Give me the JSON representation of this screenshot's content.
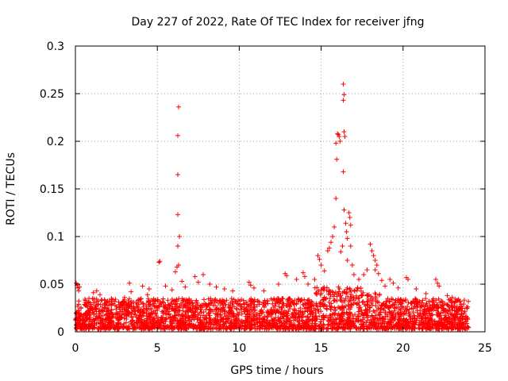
{
  "chart_data": {
    "type": "scatter",
    "title": "Day 227 of 2022, Rate Of TEC Index for receiver jfng",
    "xlabel": "GPS time / hours",
    "ylabel": "ROTI / TECUs",
    "xlim": [
      0,
      25
    ],
    "ylim": [
      0,
      0.3
    ],
    "grid": true,
    "marker": "+",
    "marker_color": "#ff0000",
    "x_ticks": [
      0,
      5,
      10,
      15,
      20,
      25
    ],
    "x_tick_labels": [
      "0",
      "5",
      "10",
      "15",
      "20",
      "25"
    ],
    "y_ticks": [
      0,
      0.05,
      0.1,
      0.15,
      0.2,
      0.25,
      0.3
    ],
    "y_tick_labels": [
      "0",
      "0.05",
      "0.1",
      "0.15",
      "0.2",
      "0.25",
      "0.3"
    ],
    "series": [
      {
        "name": "ROTI",
        "baseline_band": {
          "x_start": 0,
          "x_end": 24,
          "y_low": 0.003,
          "y_high": 0.035,
          "samples": 3000
        },
        "points": [
          [
            0.05,
            0.051
          ],
          [
            0.1,
            0.049
          ],
          [
            0.15,
            0.046
          ],
          [
            0.2,
            0.043
          ],
          [
            0.25,
            0.047
          ],
          [
            1.1,
            0.041
          ],
          [
            1.3,
            0.043
          ],
          [
            1.5,
            0.039
          ],
          [
            2.2,
            0.035
          ],
          [
            3.0,
            0.036
          ],
          [
            3.4,
            0.042
          ],
          [
            3.3,
            0.051
          ],
          [
            4.1,
            0.048
          ],
          [
            4.4,
            0.039
          ],
          [
            4.5,
            0.045
          ],
          [
            5.1,
            0.073
          ],
          [
            5.15,
            0.074
          ],
          [
            5.5,
            0.048
          ],
          [
            5.9,
            0.044
          ],
          [
            6.1,
            0.063
          ],
          [
            6.2,
            0.068
          ],
          [
            6.25,
            0.09
          ],
          [
            6.3,
            0.07
          ],
          [
            6.35,
            0.1
          ],
          [
            6.25,
            0.123
          ],
          [
            6.25,
            0.165
          ],
          [
            6.25,
            0.206
          ],
          [
            6.3,
            0.236
          ],
          [
            6.5,
            0.053
          ],
          [
            6.7,
            0.047
          ],
          [
            7.3,
            0.058
          ],
          [
            7.5,
            0.052
          ],
          [
            7.8,
            0.06
          ],
          [
            8.2,
            0.05
          ],
          [
            8.6,
            0.047
          ],
          [
            9.1,
            0.045
          ],
          [
            9.6,
            0.043
          ],
          [
            10.6,
            0.052
          ],
          [
            10.7,
            0.049
          ],
          [
            10.9,
            0.046
          ],
          [
            11.5,
            0.043
          ],
          [
            12.4,
            0.05
          ],
          [
            12.8,
            0.061
          ],
          [
            12.9,
            0.059
          ],
          [
            13.5,
            0.055
          ],
          [
            13.9,
            0.062
          ],
          [
            14.0,
            0.058
          ],
          [
            14.2,
            0.05
          ],
          [
            14.6,
            0.055
          ],
          [
            14.8,
            0.08
          ],
          [
            14.9,
            0.076
          ],
          [
            15.0,
            0.07
          ],
          [
            15.2,
            0.064
          ],
          [
            15.4,
            0.085
          ],
          [
            15.5,
            0.088
          ],
          [
            15.6,
            0.094
          ],
          [
            15.7,
            0.1
          ],
          [
            15.8,
            0.11
          ],
          [
            15.9,
            0.14
          ],
          [
            15.95,
            0.181
          ],
          [
            15.9,
            0.198
          ],
          [
            16.0,
            0.208
          ],
          [
            16.05,
            0.207
          ],
          [
            16.1,
            0.205
          ],
          [
            16.15,
            0.2
          ],
          [
            16.2,
            0.084
          ],
          [
            16.3,
            0.09
          ],
          [
            16.35,
            0.26
          ],
          [
            16.4,
            0.249
          ],
          [
            16.35,
            0.243
          ],
          [
            16.4,
            0.21
          ],
          [
            16.45,
            0.205
          ],
          [
            16.35,
            0.168
          ],
          [
            16.4,
            0.128
          ],
          [
            16.5,
            0.114
          ],
          [
            16.55,
            0.105
          ],
          [
            16.6,
            0.098
          ],
          [
            16.6,
            0.075
          ],
          [
            16.7,
            0.125
          ],
          [
            16.75,
            0.12
          ],
          [
            16.8,
            0.112
          ],
          [
            16.8,
            0.09
          ],
          [
            16.9,
            0.07
          ],
          [
            17.0,
            0.06
          ],
          [
            17.3,
            0.055
          ],
          [
            17.6,
            0.06
          ],
          [
            17.8,
            0.065
          ],
          [
            18.0,
            0.092
          ],
          [
            18.1,
            0.085
          ],
          [
            18.2,
            0.08
          ],
          [
            18.3,
            0.075
          ],
          [
            18.4,
            0.07
          ],
          [
            18.3,
            0.065
          ],
          [
            18.5,
            0.061
          ],
          [
            18.7,
            0.054
          ],
          [
            18.9,
            0.048
          ],
          [
            19.2,
            0.055
          ],
          [
            19.4,
            0.051
          ],
          [
            19.7,
            0.046
          ],
          [
            20.2,
            0.057
          ],
          [
            20.3,
            0.055
          ],
          [
            20.8,
            0.045
          ],
          [
            21.4,
            0.04
          ],
          [
            22.0,
            0.055
          ],
          [
            22.1,
            0.051
          ],
          [
            22.2,
            0.048
          ],
          [
            22.7,
            0.038
          ],
          [
            23.0,
            0.036
          ],
          [
            23.5,
            0.032
          ]
        ]
      }
    ]
  }
}
